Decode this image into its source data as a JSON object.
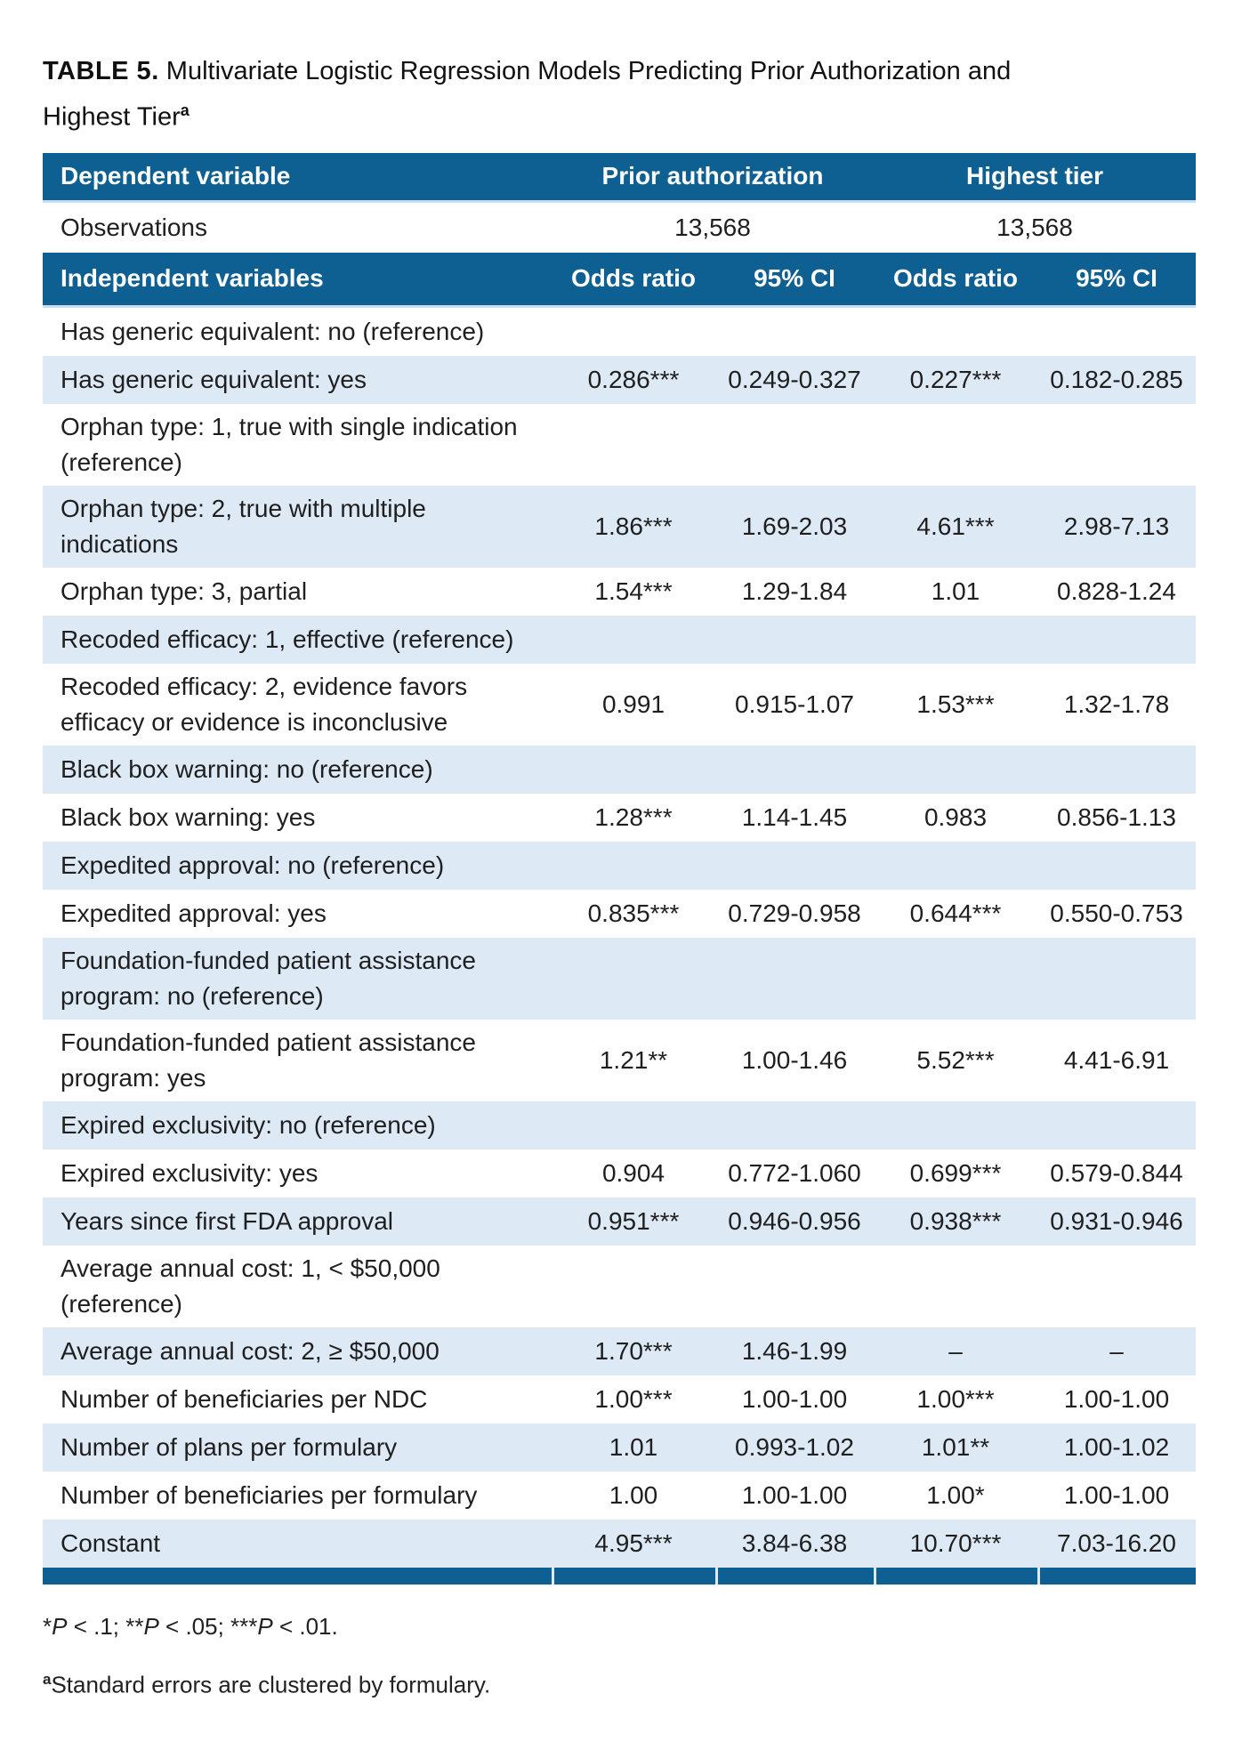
{
  "title": {
    "bold_label": "TABLE 5.",
    "text": " Multivariate Logistic Regression Models Predicting Prior Authorization and\nHighest Tier",
    "superscript": "a"
  },
  "colors": {
    "header_blue": "#0E5F92",
    "row_shade_blue": "#DDE9F5",
    "bar_underline": "#C9DDEF",
    "text": "#1F1F1F"
  },
  "table": {
    "dependent_header": {
      "label": "Dependent variable",
      "groups": [
        "Prior authorization",
        "Highest tier"
      ]
    },
    "observations": {
      "label": "Observations",
      "values": [
        "13,568",
        "13,568"
      ]
    },
    "independent_header": {
      "label": "Independent variables",
      "columns": [
        "Odds ratio",
        "95% CI",
        "Odds ratio",
        "95% CI"
      ]
    },
    "rows": [
      {
        "label": "Has generic equivalent: no (reference)",
        "values": [
          "",
          "",
          "",
          ""
        ],
        "shaded": false
      },
      {
        "label": "Has generic equivalent: yes",
        "values": [
          "0.286***",
          "0.249-0.327",
          "0.227***",
          "0.182-0.285"
        ],
        "shaded": true
      },
      {
        "label": "Orphan type: 1, true with single indication\n(reference)",
        "values": [
          "",
          "",
          "",
          ""
        ],
        "shaded": false
      },
      {
        "label": "Orphan type: 2, true with multiple\nindications",
        "values": [
          "1.86***",
          "1.69-2.03",
          "4.61***",
          "2.98-7.13"
        ],
        "shaded": true
      },
      {
        "label": "Orphan type: 3, partial",
        "values": [
          "1.54***",
          "1.29-1.84",
          "1.01",
          "0.828-1.24"
        ],
        "shaded": false
      },
      {
        "label": "Recoded efficacy: 1, effective (reference)",
        "values": [
          "",
          "",
          "",
          ""
        ],
        "shaded": true
      },
      {
        "label": "Recoded efficacy: 2, evidence favors\nefficacy or evidence is inconclusive",
        "values": [
          "0.991",
          "0.915-1.07",
          "1.53***",
          "1.32-1.78"
        ],
        "shaded": false
      },
      {
        "label": "Black box warning: no (reference)",
        "values": [
          "",
          "",
          "",
          ""
        ],
        "shaded": true
      },
      {
        "label": "Black box warning: yes",
        "values": [
          "1.28***",
          "1.14-1.45",
          "0.983",
          "0.856-1.13"
        ],
        "shaded": false
      },
      {
        "label": "Expedited approval: no (reference)",
        "values": [
          "",
          "",
          "",
          ""
        ],
        "shaded": true
      },
      {
        "label": "Expedited approval: yes",
        "values": [
          "0.835***",
          "0.729-0.958",
          "0.644***",
          "0.550-0.753"
        ],
        "shaded": false
      },
      {
        "label": "Foundation-funded patient assistance\nprogram: no (reference)",
        "values": [
          "",
          "",
          "",
          ""
        ],
        "shaded": true
      },
      {
        "label": "Foundation-funded patient assistance\nprogram: yes",
        "values": [
          "1.21**",
          "1.00-1.46",
          "5.52***",
          "4.41-6.91"
        ],
        "shaded": false
      },
      {
        "label": "Expired exclusivity: no (reference)",
        "values": [
          "",
          "",
          "",
          ""
        ],
        "shaded": true
      },
      {
        "label": "Expired exclusivity: yes",
        "values": [
          "0.904",
          "0.772-1.060",
          "0.699***",
          "0.579-0.844"
        ],
        "shaded": false
      },
      {
        "label": "Years since first FDA approval",
        "values": [
          "0.951***",
          "0.946-0.956",
          "0.938***",
          "0.931-0.946"
        ],
        "shaded": true
      },
      {
        "label": "Average annual cost: 1, < $50,000\n(reference)",
        "values": [
          "",
          "",
          "",
          ""
        ],
        "shaded": false
      },
      {
        "label": "Average annual cost: 2, ≥ $50,000",
        "values": [
          "1.70***",
          "1.46-1.99",
          "–",
          "–"
        ],
        "shaded": true
      },
      {
        "label": "Number of beneficiaries per NDC",
        "values": [
          "1.00***",
          "1.00-1.00",
          "1.00***",
          "1.00-1.00"
        ],
        "shaded": false
      },
      {
        "label": "Number of plans per formulary",
        "values": [
          "1.01",
          "0.993-1.02",
          "1.01**",
          "1.00-1.02"
        ],
        "shaded": true
      },
      {
        "label": "Number of beneficiaries per formulary",
        "values": [
          "1.00",
          "1.00-1.00",
          "1.00*",
          "1.00-1.00"
        ],
        "shaded": false
      },
      {
        "label": "Constant",
        "values": [
          "4.95***",
          "3.84-6.38",
          "10.70***",
          "7.03-16.20"
        ],
        "shaded": true
      }
    ]
  },
  "footnotes": {
    "significance": {
      "parts": [
        "*",
        "P",
        " < .1; **",
        "P",
        " < .05; ***",
        "P",
        " < .01."
      ]
    },
    "clustering": {
      "superscript": "a",
      "text": "Standard errors are clustered by formulary."
    }
  }
}
